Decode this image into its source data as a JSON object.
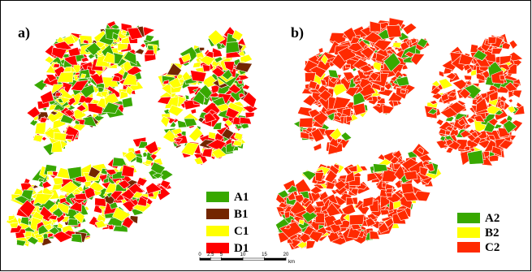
{
  "panels": [
    {
      "label": "a)",
      "legend": [
        {
          "name": "A1",
          "color": "#38a800"
        },
        {
          "name": "B1",
          "color": "#732600"
        },
        {
          "name": "C1",
          "color": "#ffff00"
        },
        {
          "name": "D1",
          "color": "#ff0000"
        }
      ]
    },
    {
      "label": "b)",
      "legend": [
        {
          "name": "A2",
          "color": "#38a800"
        },
        {
          "name": "B2",
          "color": "#ffff00"
        },
        {
          "name": "C2",
          "color": "#ff2a00"
        }
      ]
    }
  ],
  "scale_bar": {
    "ticks": [
      0,
      2.5,
      5,
      10,
      15,
      20
    ],
    "unit": "km"
  }
}
